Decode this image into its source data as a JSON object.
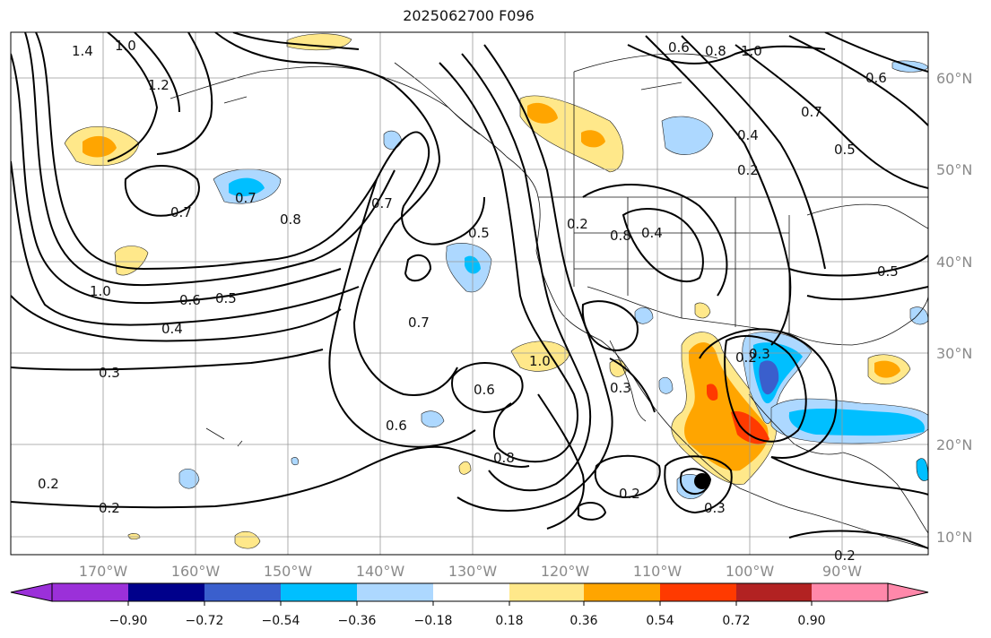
{
  "title": "2025062700 F096",
  "lon_labels": [
    "170°W",
    "160°W",
    "150°W",
    "140°W",
    "130°W",
    "120°W",
    "110°W",
    "100°W",
    "90°W"
  ],
  "lat_labels": [
    "60°N",
    "50°N",
    "40°N",
    "30°N",
    "20°N",
    "10°N"
  ],
  "colorbar": {
    "ticks": [
      "−0.90",
      "−0.72",
      "−0.54",
      "−0.36",
      "−0.18",
      "0.18",
      "0.36",
      "0.54",
      "0.72",
      "0.90"
    ],
    "colors": [
      "#9b30d9",
      "#00008b",
      "#3a5fcd",
      "#00bfff",
      "#add8ff",
      "#ffffff",
      "#ffe88a",
      "#ffa500",
      "#ff3a00",
      "#b22222",
      "#ff88aa"
    ]
  },
  "contour_labels": [
    "1.4",
    "1.0",
    "1.2",
    "0.7",
    "0.8",
    "0.7",
    "1.0",
    "0.6",
    "0.5",
    "0.4",
    "0.3",
    "0.2",
    "0.2",
    "0.7",
    "0.5",
    "0.7",
    "0.6",
    "0.8",
    "0.6",
    "1.0",
    "0.2",
    "0.8",
    "0.4",
    "0.2",
    "0.3",
    "0.6",
    "0.8",
    "1.0",
    "0.7",
    "0.4",
    "0.2",
    "0.5",
    "0.5",
    "0.6",
    "0.2",
    "0.3",
    "0.2",
    "0.3"
  ],
  "marker": "storm-center-dot"
}
